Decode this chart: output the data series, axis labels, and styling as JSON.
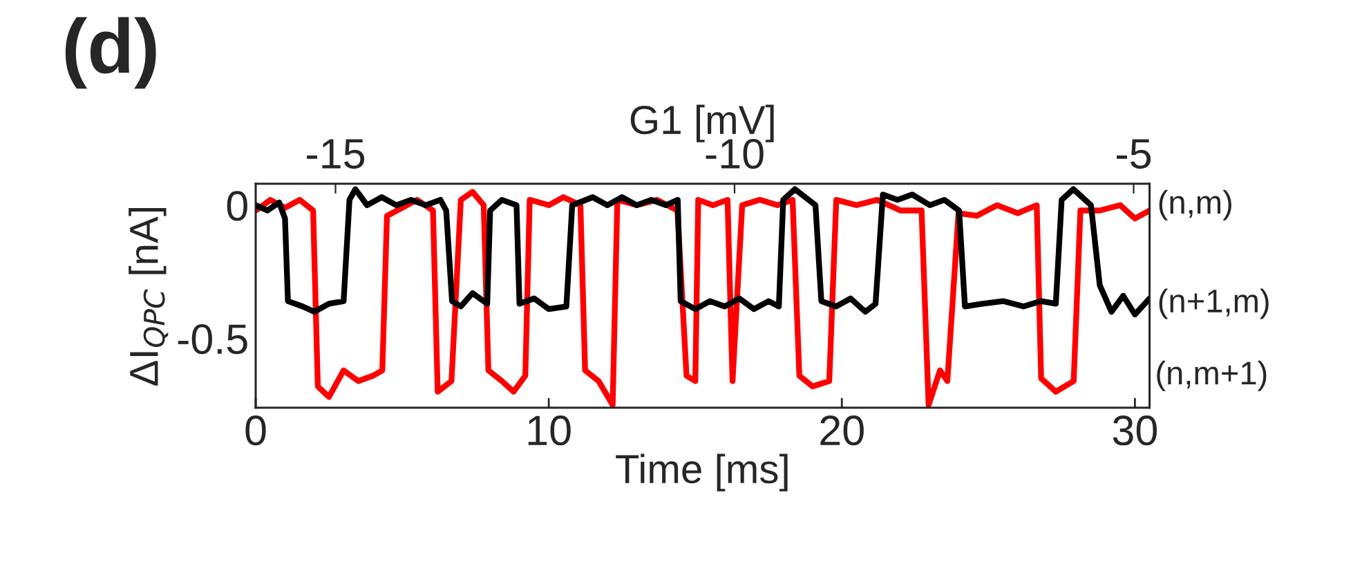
{
  "chart_data": {
    "type": "line",
    "xlabel": "Time [ms]",
    "ylabel": "ΔI$_{QPC}$ [nA]",
    "x2label": "G1 [mV]",
    "xlim": [
      0,
      30.5
    ],
    "xticks": [
      0,
      10,
      20,
      30
    ],
    "ylim": [
      -0.76,
      0.08
    ],
    "yticks": [
      0,
      -0.5
    ],
    "x2lim": [
      -16,
      -4.8
    ],
    "x2ticks": [
      -15,
      -10,
      -5
    ],
    "grid": false,
    "legend": false,
    "marker": "none",
    "line_style": "solid",
    "annotations": [
      "(d)",
      {
        "text": "(n,m)",
        "x": 30.5,
        "y": 0
      },
      {
        "text": "(n+1,m)",
        "x": 30.5,
        "y": -0.37
      },
      "(n,m+1)"
    ],
    "series": [
      {
        "color": "#ff0000",
        "x": [
          0,
          0.5,
          1.0,
          1.5,
          1.96,
          2.12,
          2.5,
          3.0,
          3.5,
          4.0,
          4.32,
          4.48,
          5.0,
          5.5,
          6.05,
          6.21,
          6.68,
          7.0,
          7.4,
          7.78,
          7.94,
          8.4,
          8.8,
          9.2,
          9.35,
          10.0,
          10.5,
          11.08,
          11.24,
          11.7,
          12.18,
          12.34,
          13.0,
          13.7,
          14.39,
          14.7,
          15.0,
          15.1,
          15.6,
          16.1,
          16.27,
          16.6,
          17.2,
          17.8,
          18.32,
          18.55,
          19.0,
          19.57,
          19.81,
          20.5,
          21.2,
          22.0,
          22.72,
          22.96,
          23.35,
          23.6,
          23.98,
          24.6,
          25.3,
          26.0,
          26.65,
          26.8,
          27.3,
          27.91,
          28.14,
          28.8,
          29.5,
          30.0,
          30.5
        ],
        "values": [
          -0.02,
          0.02,
          -0.01,
          0.02,
          -0.02,
          -0.68,
          -0.72,
          -0.62,
          -0.66,
          -0.64,
          -0.62,
          -0.04,
          -0.01,
          0.02,
          -0.02,
          -0.7,
          -0.66,
          0.02,
          0.05,
          0.0,
          -0.62,
          -0.66,
          -0.7,
          -0.64,
          0.02,
          0.0,
          0.03,
          0.0,
          -0.62,
          -0.66,
          -0.75,
          0.02,
          0.0,
          0.02,
          -0.02,
          -0.64,
          -0.66,
          0.02,
          0.0,
          0.02,
          -0.66,
          0.0,
          0.02,
          0.0,
          0.02,
          -0.64,
          -0.68,
          -0.66,
          0.02,
          0.0,
          0.02,
          -0.02,
          -0.02,
          -0.75,
          -0.62,
          -0.66,
          -0.03,
          -0.04,
          0.0,
          -0.03,
          0.0,
          -0.65,
          -0.7,
          -0.66,
          -0.02,
          -0.02,
          0.0,
          -0.05,
          -0.02
        ]
      },
      {
        "color": "#000000",
        "x": [
          0,
          0.4,
          0.8,
          1.0,
          1.1,
          1.6,
          2.0,
          2.5,
          3.0,
          3.2,
          3.4,
          3.8,
          4.3,
          4.8,
          5.3,
          5.8,
          6.3,
          6.5,
          6.7,
          7.0,
          7.4,
          7.9,
          8.0,
          8.4,
          8.9,
          9.0,
          9.5,
          10.0,
          10.6,
          10.8,
          11.5,
          12.0,
          12.5,
          13.0,
          13.5,
          14.0,
          14.4,
          14.5,
          15.0,
          15.5,
          16.0,
          16.5,
          17.0,
          17.5,
          17.85,
          18.0,
          18.4,
          19.1,
          19.3,
          19.8,
          20.3,
          20.8,
          21.15,
          21.4,
          21.9,
          22.4,
          23.0,
          23.5,
          24.0,
          24.2,
          24.8,
          25.5,
          26.2,
          26.8,
          27.3,
          27.5,
          27.9,
          28.5,
          28.8,
          29.2,
          29.6,
          30.0,
          30.5
        ],
        "values": [
          0.0,
          -0.02,
          0.01,
          -0.05,
          -0.36,
          -0.38,
          -0.4,
          -0.37,
          -0.36,
          0.02,
          0.06,
          0.0,
          0.03,
          0.0,
          0.02,
          0.0,
          0.02,
          -0.02,
          -0.36,
          -0.38,
          -0.33,
          -0.37,
          -0.02,
          0.02,
          0.0,
          -0.37,
          -0.35,
          -0.39,
          -0.38,
          0.0,
          0.03,
          0.0,
          0.03,
          0.0,
          0.02,
          0.0,
          0.02,
          -0.36,
          -0.39,
          -0.36,
          -0.38,
          -0.35,
          -0.39,
          -0.36,
          -0.38,
          0.02,
          0.06,
          0.0,
          -0.36,
          -0.38,
          -0.35,
          -0.4,
          -0.37,
          0.04,
          0.02,
          0.04,
          0.0,
          0.02,
          -0.02,
          -0.38,
          -0.37,
          -0.36,
          -0.38,
          -0.36,
          -0.37,
          0.02,
          0.06,
          0.0,
          -0.3,
          -0.4,
          -0.34,
          -0.41,
          -0.35
        ]
      }
    ]
  }
}
